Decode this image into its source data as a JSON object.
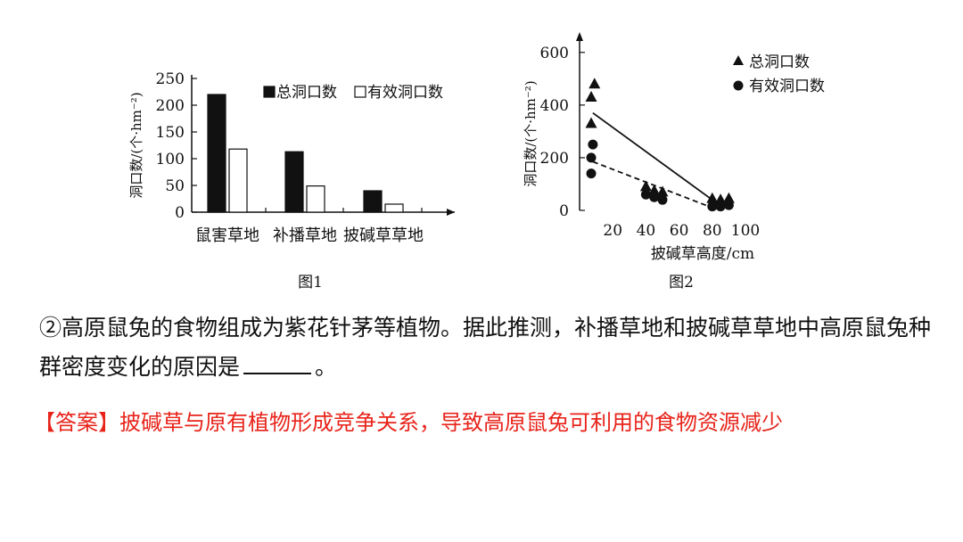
{
  "chart_data": [
    {
      "type": "bar",
      "caption": "图1",
      "ylabel": "洞口数/(个·hm⁻²)",
      "ylim": [
        0,
        250
      ],
      "yticks": [
        0,
        50,
        100,
        150,
        200,
        250
      ],
      "categories": [
        "鼠害草地",
        "补播草地",
        "披碱草草地"
      ],
      "legend_position": "top-right",
      "series": [
        {
          "name": "总洞口数",
          "values": [
            220,
            113,
            40
          ],
          "fill": "#111111"
        },
        {
          "name": "有效洞口数",
          "values": [
            118,
            49,
            15
          ],
          "fill": "#ffffff"
        }
      ]
    },
    {
      "type": "scatter",
      "caption": "图2",
      "xlabel": "披碱草高度/cm",
      "ylabel": "洞口数/(个·hm⁻²)",
      "xticks": [
        20,
        40,
        60,
        80,
        100
      ],
      "yticks": [
        0,
        200,
        400,
        600
      ],
      "xlim": [
        0,
        105
      ],
      "ylim": [
        0,
        650
      ],
      "legend_position": "top-right",
      "series": [
        {
          "name": "总洞口数",
          "marker": "triangle",
          "points": [
            [
              7,
              430
            ],
            [
              9,
              480
            ],
            [
              7,
              330
            ],
            [
              40,
              90
            ],
            [
              45,
              75
            ],
            [
              50,
              70
            ],
            [
              80,
              45
            ],
            [
              85,
              40
            ],
            [
              90,
              45
            ]
          ],
          "trend": [
            [
              8,
              370
            ],
            [
              80,
              40
            ]
          ]
        },
        {
          "name": "有效洞口数",
          "marker": "circle",
          "points": [
            [
              8,
              250
            ],
            [
              7,
              200
            ],
            [
              7,
              140
            ],
            [
              40,
              60
            ],
            [
              45,
              50
            ],
            [
              50,
              40
            ],
            [
              80,
              15
            ],
            [
              85,
              15
            ],
            [
              90,
              20
            ]
          ],
          "trend": [
            [
              8,
              185
            ],
            [
              80,
              10
            ]
          ]
        }
      ]
    }
  ],
  "question": {
    "text_before": "②高原鼠兔的食物组成为紫花针茅等植物。据此推测，补播草地和披碱草草地中高原鼠兔种群密度变化的原因是",
    "text_after": "。"
  },
  "answer": {
    "text": "【答案】披碱草与原有植物形成竞争关系，导致高原鼠兔可利用的食物资源减少"
  }
}
